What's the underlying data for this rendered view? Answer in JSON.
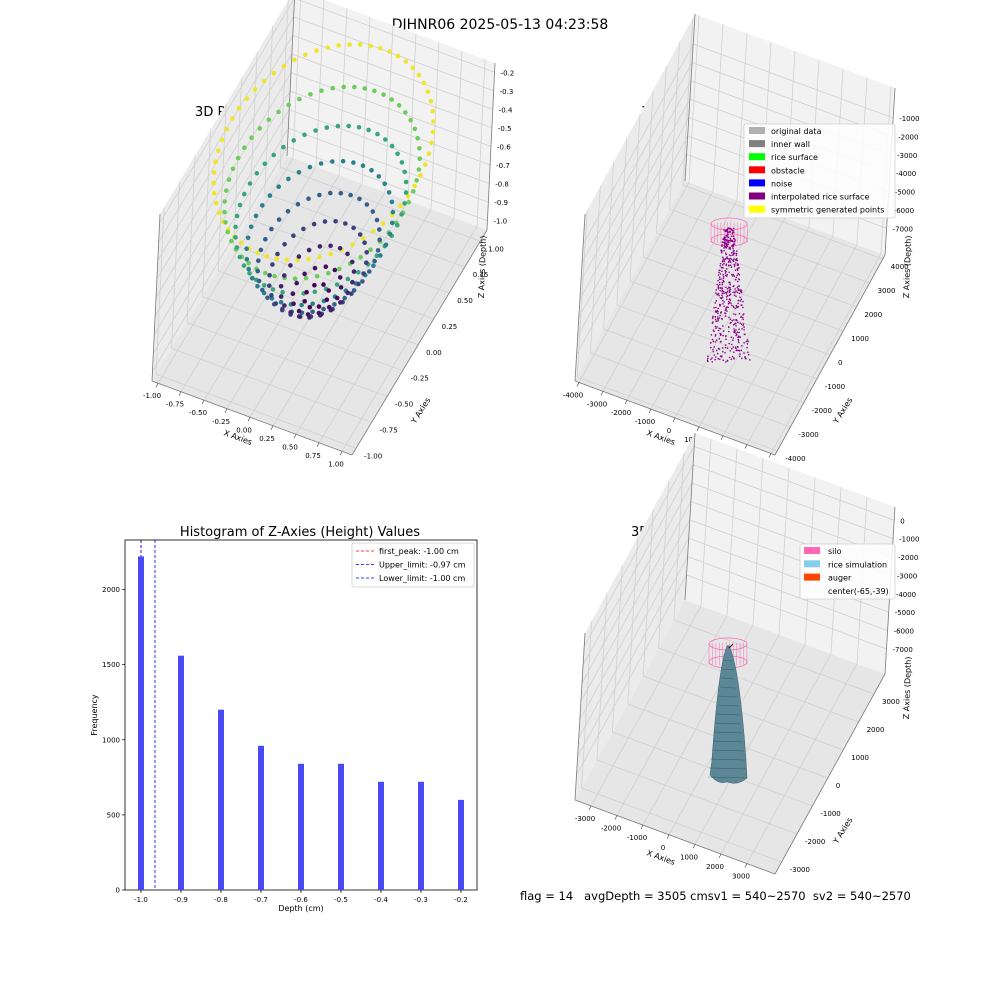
{
  "suptitle": "DJHNR06 2025-05-13 04:23:58",
  "footer": "flag = 14   avgDepth = 3505 cmsv1 = 540~2570  sv2 = 540~2570",
  "chart_data": [
    {
      "type": "scatter",
      "title": "3D Plot of Silo Interior(row data)",
      "xlabel": "X Axies",
      "ylabel": "Y Axies",
      "zlabel": "Z Axies (Depth)",
      "xlim": [
        -1.0,
        1.0
      ],
      "ylim": [
        -1.0,
        1.0
      ],
      "zlim": [
        -1.05,
        -0.15
      ],
      "x_ticks": [
        "-1.00",
        "-0.75",
        "-0.50",
        "-0.25",
        "0.00",
        "0.25",
        "0.50",
        "0.75",
        "1.00"
      ],
      "y_ticks": [
        "-1.00",
        "-0.75",
        "-0.50",
        "-0.25",
        "0.00",
        "0.25",
        "0.50",
        "0.75",
        "1.00"
      ],
      "z_ticks": [
        "-0.2",
        "-0.3",
        "-0.4",
        "-0.5",
        "-0.6",
        "-0.7",
        "-0.8",
        "-0.9",
        "-1.0"
      ],
      "colormap": "viridis",
      "surface": "bowl z = -1 + 0.8*r^2 sampled on concentric rings"
    },
    {
      "type": "scatter",
      "title": "3D classify of Silo Interior",
      "xlabel": "X Axies",
      "ylabel": "Y Axies",
      "zlabel": "Z Axies (Depth)",
      "x_ticks": [
        "-4000",
        "-3000",
        "-2000",
        "-1000",
        "0",
        "1000",
        "2000",
        "3000",
        "4000"
      ],
      "y_ticks": [
        "-4000",
        "-3000",
        "-2000",
        "-1000",
        "0",
        "1000",
        "2000",
        "3000",
        "4000"
      ],
      "z_ticks": [
        "-1000",
        "-2000",
        "-3000",
        "-4000",
        "-5000",
        "-6000",
        "-7000"
      ],
      "legend": [
        {
          "label": "original data",
          "color": "#b0b0b0"
        },
        {
          "label": "inner wall",
          "color": "#808080"
        },
        {
          "label": "rice surface",
          "color": "#00ff00"
        },
        {
          "label": "obstacle",
          "color": "#ff0000"
        },
        {
          "label": "noise",
          "color": "#0000ff"
        },
        {
          "label": "interpolated rice surface",
          "color": "#800080"
        },
        {
          "label": "symmetric generated points",
          "color": "#ffff00"
        }
      ]
    },
    {
      "type": "bar",
      "title": "Histogram of Z-Axies (Height) Values",
      "xlabel": "Depth (cm)",
      "ylabel": "Frequency",
      "categories": [
        "-1.0",
        "-0.9",
        "-0.8",
        "-0.7",
        "-0.6",
        "-0.5",
        "-0.4",
        "-0.3",
        "-0.2"
      ],
      "x": [
        -1.0,
        -0.9,
        -0.8,
        -0.7,
        -0.6,
        -0.5,
        -0.4,
        -0.3,
        -0.2
      ],
      "values": [
        2220,
        1560,
        1200,
        960,
        840,
        840,
        720,
        720,
        600
      ],
      "xlim": [
        -1.04,
        -0.16
      ],
      "ylim": [
        0,
        2330
      ],
      "y_ticks": [
        0,
        500,
        1000,
        1500,
        2000
      ],
      "bar_color": "#4a4af5",
      "vlines": [
        {
          "label": "first_peak: -1.00 cm",
          "x": -1.0,
          "color": "#ff0000"
        },
        {
          "label": "Upper_limit: -0.97 cm",
          "x": -0.965,
          "color": "#0000ff"
        },
        {
          "label": "Lower_limit: -1.00 cm",
          "x": -1.0,
          "color": "#0000ff"
        }
      ],
      "legend_position": "top-right"
    },
    {
      "type": "area",
      "title": "3D simulation of Silo Interior",
      "xlabel": "X Axies",
      "ylabel": "Y Axies",
      "zlabel": "Z Axies (Depth)",
      "x_ticks": [
        "-3000",
        "-2000",
        "-1000",
        "0",
        "1000",
        "2000",
        "3000"
      ],
      "y_ticks": [
        "-3000",
        "-2000",
        "-1000",
        "0",
        "1000",
        "2000",
        "3000"
      ],
      "z_ticks": [
        "0",
        "-1000",
        "-2000",
        "-3000",
        "-4000",
        "-5000",
        "-6000",
        "-7000"
      ],
      "legend": [
        {
          "label": "silo",
          "color": "#ff69b4"
        },
        {
          "label": "rice simulation",
          "color": "#87ceeb"
        },
        {
          "label": "auger",
          "color": "#ff4500"
        },
        {
          "label": "center(-65,-39)",
          "color": ""
        }
      ]
    }
  ]
}
